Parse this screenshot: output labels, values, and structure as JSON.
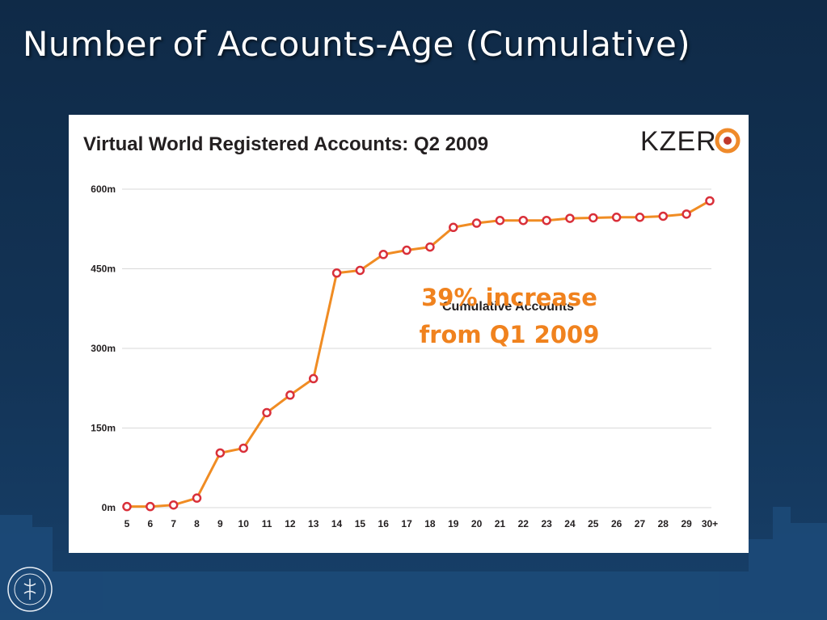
{
  "slide": {
    "title": "Number of Accounts-Age (Cumulative)",
    "note_line1": "39% increase",
    "note_line2": "from Q1 2009",
    "logo_text": "KZER",
    "seal_text": "HANDELSHÖGSKOLAN I STOCKHOLM"
  },
  "colors": {
    "background": "#133457",
    "line": "#f08c23",
    "marker": "#d9303a",
    "note": "#f0821e"
  },
  "chart_data": {
    "type": "line",
    "title": "Virtual World Registered Accounts: Q2 2009",
    "series": [
      {
        "name": "Cumulative Accounts",
        "values": [
          2,
          2,
          5,
          18,
          103,
          112,
          179,
          212,
          243,
          442,
          447,
          477,
          485,
          491,
          528,
          536,
          541,
          541,
          541,
          545,
          546,
          547,
          547,
          549,
          553,
          578
        ]
      }
    ],
    "categories": [
      "5",
      "6",
      "7",
      "8",
      "9",
      "10",
      "11",
      "12",
      "13",
      "14",
      "15",
      "16",
      "17",
      "18",
      "19",
      "20",
      "21",
      "22",
      "23",
      "24",
      "25",
      "26",
      "27",
      "28",
      "29",
      "30+"
    ],
    "y_ticks": [
      0,
      150,
      300,
      450,
      600
    ],
    "y_tick_labels": [
      "0m",
      "150m",
      "300m",
      "450m",
      "600m"
    ],
    "ylim": [
      0,
      600
    ],
    "unit": "m",
    "xlabel": "",
    "ylabel": "",
    "grid": true,
    "legend": "inline"
  }
}
